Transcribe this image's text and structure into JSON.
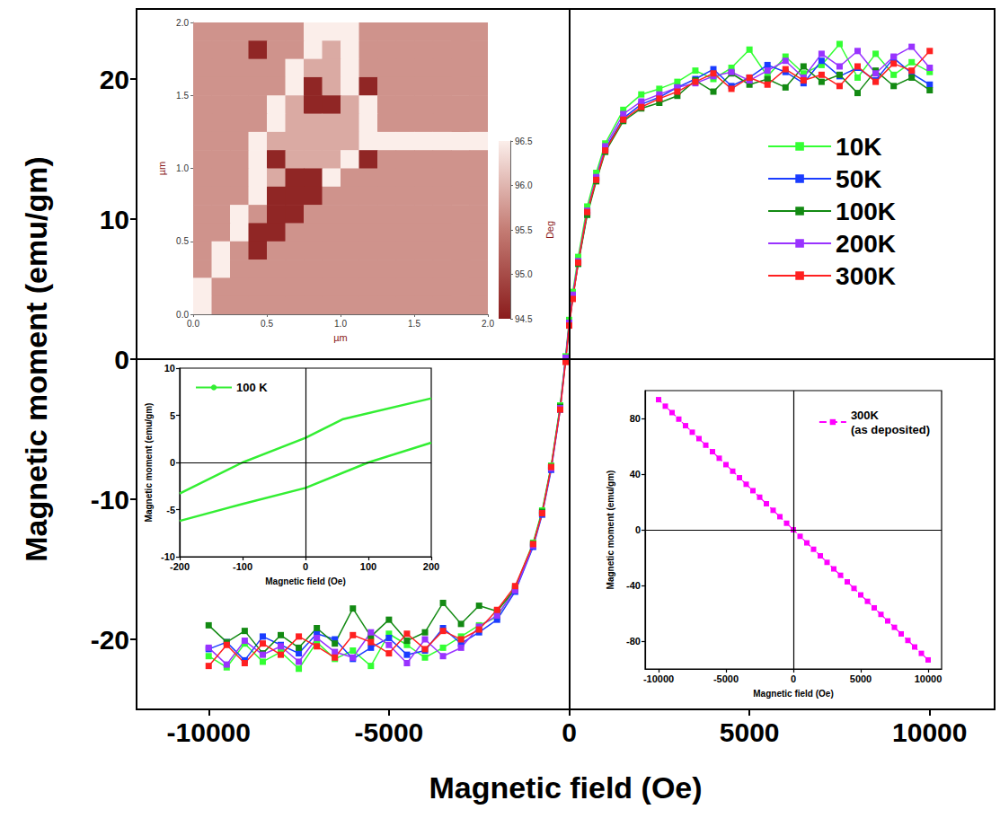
{
  "chart_data": [
    {
      "type": "line",
      "x_label": "Magnetic field (Oe)",
      "y_label": "Magnetic moment (emu/gm)",
      "x": [
        10000,
        9500,
        9000,
        8500,
        8000,
        7500,
        7000,
        6500,
        6000,
        5500,
        5000,
        4500,
        4000,
        3500,
        3000,
        2500,
        2000,
        1500,
        1000,
        750,
        500,
        250,
        100,
        0,
        -100,
        -250,
        -500,
        -750,
        -1000,
        -1500,
        -2000,
        -2500,
        -3000,
        -3500,
        -4000,
        -4500,
        -5000,
        -5500,
        -6000,
        -6500,
        -7000,
        -7500,
        -8000,
        -8500,
        -9000,
        -9500,
        -10000
      ],
      "series": [
        {
          "name": "10K",
          "color": "#33ff33",
          "marker": "square",
          "line_style": "solid",
          "values": [
            20.5,
            21.2,
            20.3,
            21.8,
            20.1,
            22.5,
            21.0,
            20.4,
            21.6,
            20.2,
            22.1,
            20.8,
            20.0,
            20.6,
            19.8,
            19.3,
            18.9,
            17.8,
            15.4,
            13.3,
            10.9,
            7.3,
            4.8,
            2.8,
            0.2,
            -3.3,
            -7.6,
            -10.8,
            -13.1,
            -16.3,
            -18.4,
            -19.0,
            -19.8,
            -20.6,
            -21.3,
            -20.4,
            -19.6,
            -21.9,
            -20.8,
            -21.4,
            -20.2,
            -22.1,
            -20.9,
            -21.6,
            -20.3,
            -22.0,
            -21.2
          ]
        },
        {
          "name": "50K",
          "color": "#1a3cff",
          "marker": "square",
          "line_style": "solid",
          "values": [
            19.6,
            20.4,
            21.5,
            19.9,
            20.8,
            20.2,
            21.3,
            19.7,
            20.5,
            21.0,
            20.1,
            19.5,
            20.7,
            20.0,
            19.4,
            18.7,
            18.2,
            17.2,
            15.0,
            12.9,
            10.4,
            6.9,
            4.4,
            2.4,
            -0.1,
            -3.6,
            -7.9,
            -11.1,
            -13.4,
            -16.6,
            -18.6,
            -19.5,
            -20.3,
            -19.2,
            -20.8,
            -21.1,
            -19.9,
            -20.6,
            -21.4,
            -20.0,
            -19.6,
            -21.0,
            -20.4,
            -19.8,
            -21.5,
            -20.2,
            -20.7
          ]
        },
        {
          "name": "100K",
          "color": "#138a13",
          "marker": "square",
          "line_style": "solid",
          "values": [
            19.2,
            20.1,
            19.5,
            20.6,
            19.0,
            20.3,
            19.8,
            20.9,
            19.4,
            20.0,
            19.6,
            20.4,
            19.1,
            19.9,
            18.8,
            18.3,
            17.9,
            17.0,
            14.8,
            12.7,
            10.3,
            6.8,
            4.5,
            2.5,
            0.0,
            -3.4,
            -7.7,
            -10.9,
            -13.2,
            -16.4,
            -18.0,
            -17.6,
            -18.9,
            -17.4,
            -19.5,
            -20.1,
            -18.6,
            -19.8,
            -17.8,
            -20.3,
            -19.2,
            -20.6,
            -19.7,
            -21.0,
            -19.4,
            -20.2,
            -19.0
          ]
        },
        {
          "name": "200K",
          "color": "#9933ff",
          "marker": "square",
          "line_style": "solid",
          "values": [
            20.8,
            22.3,
            21.6,
            20.4,
            22.0,
            20.9,
            21.8,
            20.1,
            21.3,
            20.6,
            19.9,
            20.5,
            20.2,
            19.7,
            19.4,
            18.9,
            18.4,
            17.5,
            15.2,
            13.0,
            10.6,
            7.0,
            4.6,
            2.6,
            0.1,
            -3.5,
            -7.8,
            -11.0,
            -13.3,
            -16.5,
            -18.3,
            -19.1,
            -20.6,
            -21.2,
            -20.0,
            -21.7,
            -20.4,
            -19.5,
            -21.3,
            -20.9,
            -19.9,
            -21.6,
            -20.5,
            -21.1,
            -20.1,
            -21.8,
            -20.6
          ]
        },
        {
          "name": "300K",
          "color": "#ff2020",
          "marker": "square",
          "line_style": "solid",
          "values": [
            22.0,
            20.6,
            21.1,
            19.8,
            20.9,
            19.5,
            20.3,
            19.9,
            20.7,
            19.6,
            20.1,
            19.3,
            20.4,
            19.8,
            19.1,
            18.6,
            18.0,
            17.1,
            14.9,
            12.8,
            10.5,
            6.9,
            4.3,
            2.4,
            -0.2,
            -3.6,
            -7.7,
            -11.0,
            -13.2,
            -16.2,
            -17.9,
            -19.3,
            -20.0,
            -19.4,
            -20.7,
            -19.6,
            -21.0,
            -20.2,
            -19.7,
            -21.3,
            -20.5,
            -19.8,
            -21.1,
            -20.3,
            -21.7,
            -20.4,
            -21.9
          ]
        }
      ],
      "xlim": [
        -12000,
        11800
      ],
      "xticks": [
        -10000,
        -5000,
        0,
        5000,
        10000
      ],
      "ylim": [
        -25,
        25
      ],
      "yticks": [
        -20,
        -10,
        0,
        10,
        20
      ],
      "legend": "upper right"
    },
    {
      "type": "heatmap",
      "x_label": "µm",
      "y_label": "µm",
      "x": [
        0.0625,
        0.1875,
        0.3125,
        0.4375,
        0.5625,
        0.6875,
        0.8125,
        0.9375,
        1.0625,
        1.1875,
        1.3125,
        1.4375,
        1.5625,
        1.6875,
        1.8125,
        1.9375
      ],
      "y": [
        1.9375,
        1.8125,
        1.6875,
        1.5625,
        1.4375,
        1.3125,
        1.1875,
        1.0625,
        0.9375,
        0.8125,
        0.6875,
        0.5625,
        0.4375,
        0.3125,
        0.1875,
        0.0625
      ],
      "z": [
        [
          95.7,
          95.7,
          95.7,
          95.7,
          95.7,
          95.7,
          96.5,
          96.5,
          96.5,
          95.7,
          95.7,
          95.7,
          95.7,
          95.7,
          95.7,
          95.7
        ],
        [
          95.7,
          95.7,
          95.7,
          94.6,
          95.7,
          95.7,
          96.5,
          95.9,
          96.5,
          95.7,
          95.7,
          95.7,
          95.7,
          95.7,
          95.7,
          95.7
        ],
        [
          95.7,
          95.7,
          95.7,
          95.7,
          95.7,
          96.5,
          95.9,
          95.9,
          96.5,
          95.7,
          95.7,
          95.7,
          95.7,
          95.7,
          95.7,
          95.7
        ],
        [
          95.7,
          95.7,
          95.7,
          95.7,
          95.7,
          96.5,
          94.6,
          95.9,
          96.5,
          94.6,
          95.7,
          95.7,
          95.7,
          95.7,
          95.7,
          95.7
        ],
        [
          95.7,
          95.7,
          95.7,
          95.7,
          96.5,
          95.9,
          94.6,
          94.6,
          95.9,
          96.5,
          95.7,
          95.7,
          95.7,
          95.7,
          95.7,
          95.7
        ],
        [
          95.7,
          95.7,
          95.7,
          95.7,
          96.5,
          95.9,
          95.9,
          95.9,
          95.9,
          96.5,
          95.7,
          95.7,
          95.7,
          95.7,
          95.7,
          95.7
        ],
        [
          95.7,
          95.7,
          95.7,
          96.5,
          95.9,
          95.9,
          95.9,
          95.9,
          95.9,
          96.5,
          96.5,
          96.5,
          96.5,
          96.5,
          96.5,
          96.5
        ],
        [
          95.7,
          95.7,
          95.7,
          96.5,
          94.6,
          95.9,
          95.9,
          95.9,
          96.5,
          94.6,
          95.7,
          95.7,
          95.7,
          95.7,
          95.7,
          95.7
        ],
        [
          95.7,
          95.7,
          95.7,
          96.5,
          95.9,
          94.6,
          94.6,
          96.5,
          95.7,
          95.7,
          95.7,
          95.7,
          95.7,
          95.7,
          95.7,
          95.7
        ],
        [
          95.7,
          95.7,
          95.7,
          96.5,
          94.6,
          94.6,
          94.6,
          95.7,
          95.7,
          95.7,
          95.7,
          95.7,
          95.7,
          95.7,
          95.7,
          95.7
        ],
        [
          95.7,
          95.7,
          96.5,
          95.7,
          94.6,
          94.6,
          95.7,
          95.7,
          95.7,
          95.7,
          95.7,
          95.7,
          95.7,
          95.7,
          95.7,
          95.7
        ],
        [
          95.7,
          95.7,
          96.5,
          94.6,
          94.6,
          95.7,
          95.7,
          95.7,
          95.7,
          95.7,
          95.7,
          95.7,
          95.7,
          95.7,
          95.7,
          95.7
        ],
        [
          95.7,
          96.5,
          95.7,
          94.6,
          95.7,
          95.7,
          95.7,
          95.7,
          95.7,
          95.7,
          95.7,
          95.7,
          95.7,
          95.7,
          95.7,
          95.7
        ],
        [
          95.7,
          96.5,
          95.7,
          95.7,
          95.7,
          95.7,
          95.7,
          95.7,
          95.7,
          95.7,
          95.7,
          95.7,
          95.7,
          95.7,
          95.7,
          95.7
        ],
        [
          96.5,
          95.7,
          95.7,
          95.7,
          95.7,
          95.7,
          95.7,
          95.7,
          95.7,
          95.7,
          95.7,
          95.7,
          95.7,
          95.7,
          95.7,
          95.7
        ],
        [
          96.5,
          95.7,
          95.7,
          95.7,
          95.7,
          95.7,
          95.7,
          95.7,
          95.7,
          95.7,
          95.7,
          95.7,
          95.7,
          95.7,
          95.7,
          95.7
        ]
      ],
      "xlim": [
        0,
        2
      ],
      "xticks": [
        {
          "value": 0,
          "label": "0.0"
        },
        0.5,
        {
          "value": 1,
          "label": "1.0"
        },
        1.5,
        {
          "value": 2,
          "label": "2.0"
        }
      ],
      "ylim": [
        0,
        2
      ],
      "yticks": [
        {
          "value": 0,
          "label": "0.0"
        },
        0.5,
        {
          "value": 1,
          "label": "1.0"
        },
        1.5,
        {
          "value": 2,
          "label": "2.0"
        }
      ],
      "colorbar": {
        "label": "Deg",
        "range": [
          94.5,
          96.5
        ],
        "ticks": [
          94.5,
          {
            "value": 95,
            "label": "95.0"
          },
          95.5,
          {
            "value": 96,
            "label": "96.0"
          },
          96.5
        ]
      }
    },
    {
      "type": "line",
      "x_label": "Magnetic field (Oe)",
      "y_label": "Magnetic moment (emu/gm)",
      "series": [
        {
          "name": "100 K",
          "color": "#33ee33",
          "line_style": "solid",
          "x": [
            200,
            60,
            0,
            -100,
            -200,
            -200,
            -200,
            -100,
            0,
            100,
            200
          ],
          "values": [
            6.8,
            4.6,
            2.6,
            0.0,
            -3.3,
            null,
            -6.2,
            -4.4,
            -2.7,
            0.0,
            2.1
          ]
        }
      ],
      "xlim": [
        -200,
        200
      ],
      "xticks": [
        -200,
        -100,
        0,
        100,
        200
      ],
      "ylim": [
        -10,
        10
      ],
      "yticks": [
        -10,
        -5,
        0,
        5,
        10
      ],
      "legend": "upper left"
    },
    {
      "type": "line",
      "x_label": "Magnetic field (Oe)",
      "y_label": "Magnetic moment (emu/gm)",
      "series": [
        {
          "name": "300K (as deposited)",
          "color": "#ff00ff",
          "marker": "square",
          "line_style": "dashed",
          "x": [
            -10000,
            -9500,
            -9000,
            -8500,
            -8000,
            -7500,
            -7000,
            -6500,
            -6000,
            -5500,
            -5000,
            -4500,
            -4000,
            -3500,
            -3000,
            -2500,
            -2000,
            -1500,
            -1000,
            -500,
            0,
            500,
            1000,
            1500,
            2000,
            2500,
            3000,
            3500,
            4000,
            4500,
            5000,
            5500,
            6000,
            6500,
            7000,
            7500,
            8000,
            8500,
            9000,
            9500,
            10000
          ],
          "values": [
            93.5,
            88.8,
            84.2,
            79.5,
            74.8,
            70.1,
            65.5,
            60.8,
            56.1,
            51.4,
            46.8,
            42.1,
            37.4,
            32.7,
            28.1,
            23.4,
            18.7,
            14.0,
            9.4,
            4.7,
            0.0,
            -4.7,
            -9.4,
            -14.0,
            -18.7,
            -23.4,
            -28.1,
            -32.7,
            -37.4,
            -42.1,
            -46.8,
            -51.4,
            -56.1,
            -60.8,
            -65.5,
            -70.1,
            -74.8,
            -79.5,
            -84.2,
            -88.8,
            -93.5
          ]
        }
      ],
      "xlim": [
        -11000,
        11000
      ],
      "xticks": [
        -10000,
        -5000,
        0,
        5000,
        10000
      ],
      "ylim": [
        -100,
        100
      ],
      "yticks": [
        -80,
        -40,
        0,
        40,
        80
      ],
      "legend": "upper right"
    }
  ]
}
